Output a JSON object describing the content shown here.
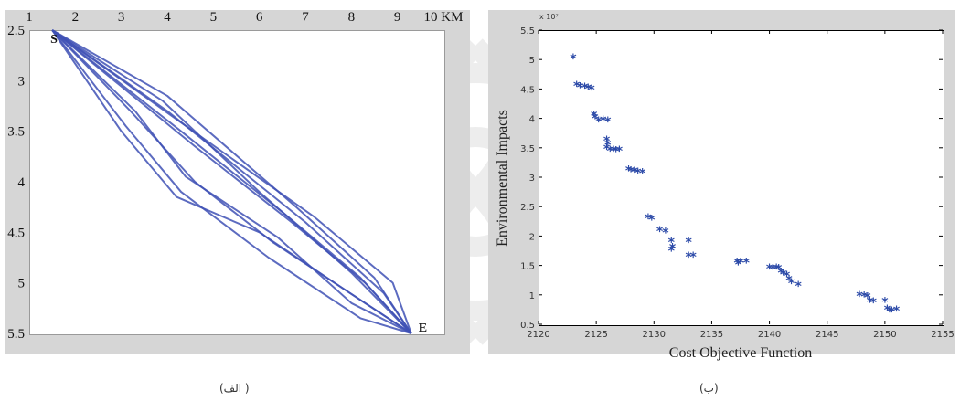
{
  "captions": {
    "left": "( الف)",
    "right": "(ب)"
  },
  "chart_data": [
    {
      "type": "line",
      "x_ticks": [
        "1",
        "2",
        "3",
        "4",
        "5",
        "6",
        "7",
        "8",
        "9",
        "10 KM"
      ],
      "y_ticks": [
        "2.5",
        "3",
        "3.5",
        "4",
        "4.5",
        "5",
        "5.5"
      ],
      "xlim": [
        1,
        10
      ],
      "ylim": [
        2.5,
        5.5
      ],
      "y_inverted": true,
      "start_label": "S",
      "end_label": "E",
      "line_color": "#3f51b5",
      "series": [
        {
          "x": [
            1.5,
            4.0,
            6.8,
            8.5,
            9.3
          ],
          "y": [
            2.5,
            3.15,
            4.25,
            4.95,
            5.5
          ]
        },
        {
          "x": [
            1.5,
            4.1,
            7.2,
            8.9,
            9.3
          ],
          "y": [
            2.5,
            3.35,
            4.35,
            5.0,
            5.5
          ]
        },
        {
          "x": [
            1.5,
            4.0,
            7.0,
            8.7,
            9.3
          ],
          "y": [
            2.5,
            3.3,
            4.4,
            5.1,
            5.5
          ]
        },
        {
          "x": [
            1.5,
            4.3,
            6.5,
            8.2,
            9.3
          ],
          "y": [
            2.5,
            3.5,
            4.3,
            4.95,
            5.5
          ]
        },
        {
          "x": [
            1.5,
            4.6,
            6.7,
            8.3,
            9.3
          ],
          "y": [
            2.5,
            3.65,
            4.4,
            5.0,
            5.5
          ]
        },
        {
          "x": [
            1.5,
            3.9,
            6.0,
            8.0,
            9.3
          ],
          "y": [
            2.5,
            3.2,
            4.1,
            4.9,
            5.5
          ]
        },
        {
          "x": [
            1.5,
            3.2,
            4.6,
            6.3,
            9.3
          ],
          "y": [
            2.5,
            3.3,
            4.0,
            4.6,
            5.5
          ]
        },
        {
          "x": [
            1.5,
            3.0,
            4.2,
            6.0,
            7.8,
            9.3
          ],
          "y": [
            2.5,
            3.5,
            4.15,
            4.5,
            5.05,
            5.5
          ]
        },
        {
          "x": [
            1.5,
            3.1,
            4.3,
            6.2,
            8.2,
            9.3
          ],
          "y": [
            2.5,
            3.45,
            4.1,
            4.75,
            5.35,
            5.5
          ]
        },
        {
          "x": [
            1.5,
            3.3,
            4.4,
            6.4,
            8.0,
            9.3
          ],
          "y": [
            2.5,
            3.3,
            3.95,
            4.55,
            5.2,
            5.5
          ]
        }
      ]
    },
    {
      "type": "scatter",
      "xlabel": "Cost Objective Function",
      "ylabel": "Environmental Impacts",
      "y_exponent_label": "x 10⁷",
      "xlim": [
        2120,
        2155
      ],
      "ylim": [
        0.5,
        5.5
      ],
      "x_ticks": [
        2120,
        2125,
        2130,
        2135,
        2140,
        2145,
        2150,
        2155
      ],
      "y_ticks": [
        0.5,
        1,
        1.5,
        2,
        2.5,
        3,
        3.5,
        4,
        4.5,
        5,
        5.5
      ],
      "marker_color": "#2c4aa8",
      "points": [
        [
          2123.0,
          5.02
        ],
        [
          2123.3,
          4.55
        ],
        [
          2123.6,
          4.53
        ],
        [
          2124.0,
          4.52
        ],
        [
          2124.3,
          4.51
        ],
        [
          2124.6,
          4.49
        ],
        [
          2124.8,
          4.05
        ],
        [
          2124.9,
          4.0
        ],
        [
          2125.2,
          3.95
        ],
        [
          2125.6,
          3.96
        ],
        [
          2126.0,
          3.95
        ],
        [
          2125.9,
          3.62
        ],
        [
          2126.0,
          3.55
        ],
        [
          2125.9,
          3.48
        ],
        [
          2126.2,
          3.45
        ],
        [
          2126.5,
          3.45
        ],
        [
          2126.7,
          3.44
        ],
        [
          2127.0,
          3.45
        ],
        [
          2127.8,
          3.12
        ],
        [
          2128.0,
          3.1
        ],
        [
          2128.3,
          3.09
        ],
        [
          2128.6,
          3.08
        ],
        [
          2129.0,
          3.07
        ],
        [
          2129.5,
          2.3
        ],
        [
          2129.8,
          2.28
        ],
        [
          2130.5,
          2.08
        ],
        [
          2131.0,
          2.06
        ],
        [
          2131.5,
          1.9
        ],
        [
          2131.5,
          1.75
        ],
        [
          2131.6,
          1.8
        ],
        [
          2133.0,
          1.9
        ],
        [
          2133.0,
          1.65
        ],
        [
          2133.4,
          1.65
        ],
        [
          2137.2,
          1.55
        ],
        [
          2137.3,
          1.52
        ],
        [
          2137.5,
          1.55
        ],
        [
          2138.0,
          1.55
        ],
        [
          2140.0,
          1.45
        ],
        [
          2140.3,
          1.44
        ],
        [
          2140.6,
          1.45
        ],
        [
          2140.8,
          1.44
        ],
        [
          2141.0,
          1.38
        ],
        [
          2141.2,
          1.35
        ],
        [
          2141.5,
          1.32
        ],
        [
          2141.7,
          1.25
        ],
        [
          2141.9,
          1.2
        ],
        [
          2142.5,
          1.15
        ],
        [
          2147.8,
          0.98
        ],
        [
          2148.2,
          0.97
        ],
        [
          2148.5,
          0.96
        ],
        [
          2148.7,
          0.88
        ],
        [
          2149.0,
          0.87
        ],
        [
          2150.0,
          0.88
        ],
        [
          2150.2,
          0.75
        ],
        [
          2150.4,
          0.72
        ],
        [
          2150.6,
          0.72
        ],
        [
          2151.0,
          0.73
        ]
      ]
    }
  ]
}
